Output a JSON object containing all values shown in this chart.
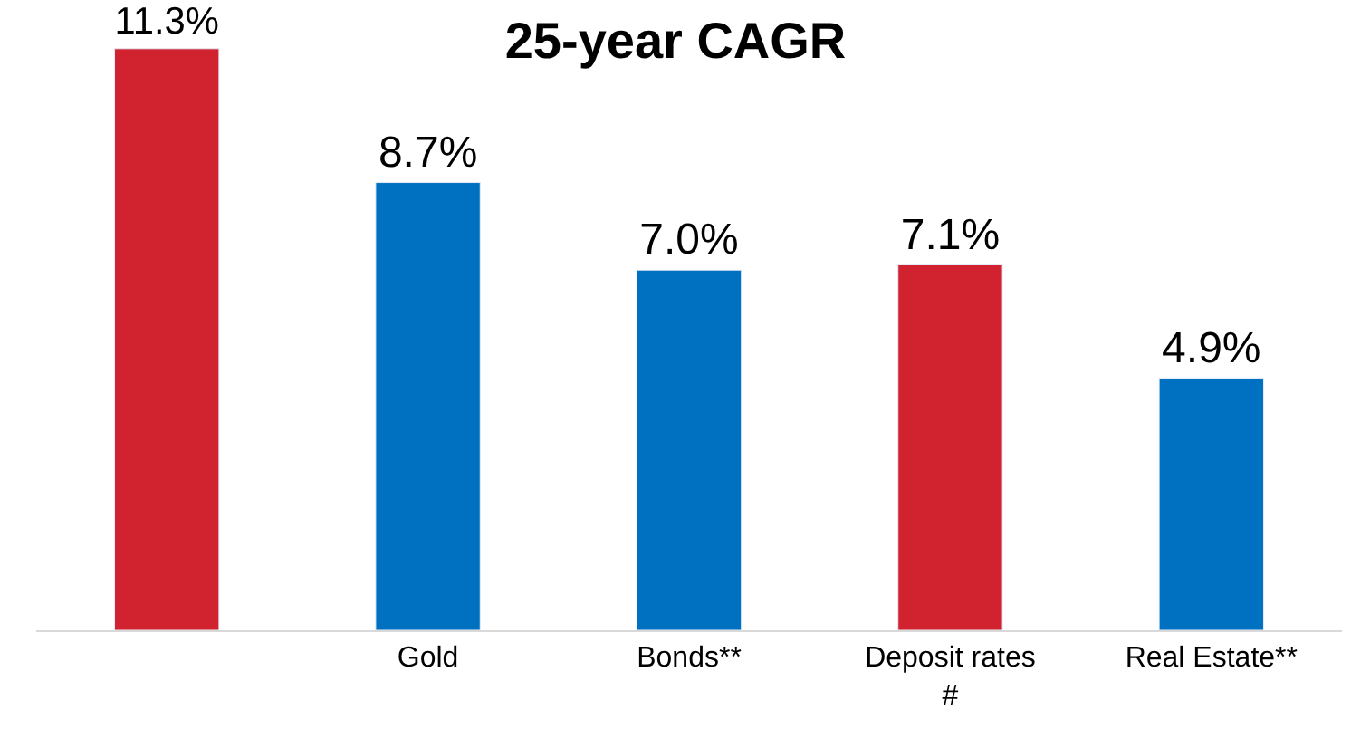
{
  "chart_data": {
    "type": "bar",
    "title": "25-year CAGR",
    "categories": [
      null,
      "Gold",
      "Bonds**",
      "Deposit rates #",
      "Real Estate**"
    ],
    "values": [
      11.3,
      8.7,
      7.0,
      7.1,
      4.9
    ],
    "colors": [
      "#d0232f",
      "#0070c0",
      "#0070c0",
      "#d0232f",
      "#0070c0"
    ],
    "value_labels": [
      "11.3%",
      "8.7%",
      "7.0%",
      "7.1%",
      "4.9%"
    ],
    "tick_labels": "x",
    "legend": false
  }
}
